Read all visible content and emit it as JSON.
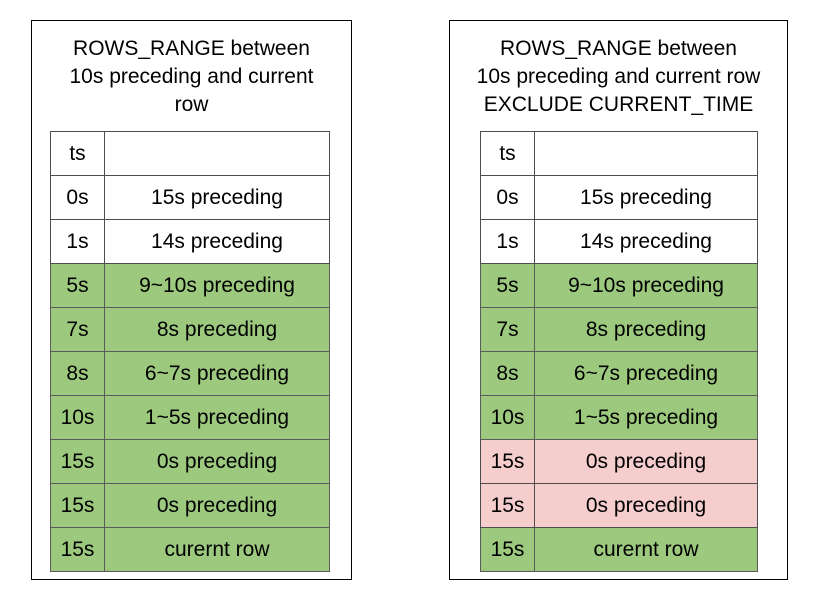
{
  "colors": {
    "in_window": "#9cc97e",
    "excluded": "#f5cdcd",
    "outside": "#ffffff",
    "border": "#000000"
  },
  "panels": [
    {
      "title": "ROWS_RANGE between\n10s preceding and current\nrow",
      "header": {
        "ts": "ts",
        "desc": ""
      },
      "rows": [
        {
          "ts": "0s",
          "desc": "15s preceding",
          "state": "outside"
        },
        {
          "ts": "1s",
          "desc": "14s preceding",
          "state": "outside"
        },
        {
          "ts": "5s",
          "desc": "9~10s preceding",
          "state": "in_window"
        },
        {
          "ts": "7s",
          "desc": "8s preceding",
          "state": "in_window"
        },
        {
          "ts": "8s",
          "desc": "6~7s preceding",
          "state": "in_window"
        },
        {
          "ts": "10s",
          "desc": "1~5s preceding",
          "state": "in_window"
        },
        {
          "ts": "15s",
          "desc": "0s preceding",
          "state": "in_window"
        },
        {
          "ts": "15s",
          "desc": "0s preceding",
          "state": "in_window"
        },
        {
          "ts": "15s",
          "desc": "curernt row",
          "state": "in_window"
        }
      ]
    },
    {
      "title": "ROWS_RANGE between\n10s preceding and current row\nEXCLUDE CURRENT_TIME",
      "header": {
        "ts": "ts",
        "desc": ""
      },
      "rows": [
        {
          "ts": "0s",
          "desc": "15s preceding",
          "state": "outside"
        },
        {
          "ts": "1s",
          "desc": "14s preceding",
          "state": "outside"
        },
        {
          "ts": "5s",
          "desc": "9~10s preceding",
          "state": "in_window"
        },
        {
          "ts": "7s",
          "desc": "8s preceding",
          "state": "in_window"
        },
        {
          "ts": "8s",
          "desc": "6~7s preceding",
          "state": "in_window"
        },
        {
          "ts": "10s",
          "desc": "1~5s preceding",
          "state": "in_window"
        },
        {
          "ts": "15s",
          "desc": "0s preceding",
          "state": "excluded"
        },
        {
          "ts": "15s",
          "desc": "0s preceding",
          "state": "excluded"
        },
        {
          "ts": "15s",
          "desc": "curernt row",
          "state": "in_window"
        }
      ]
    }
  ]
}
